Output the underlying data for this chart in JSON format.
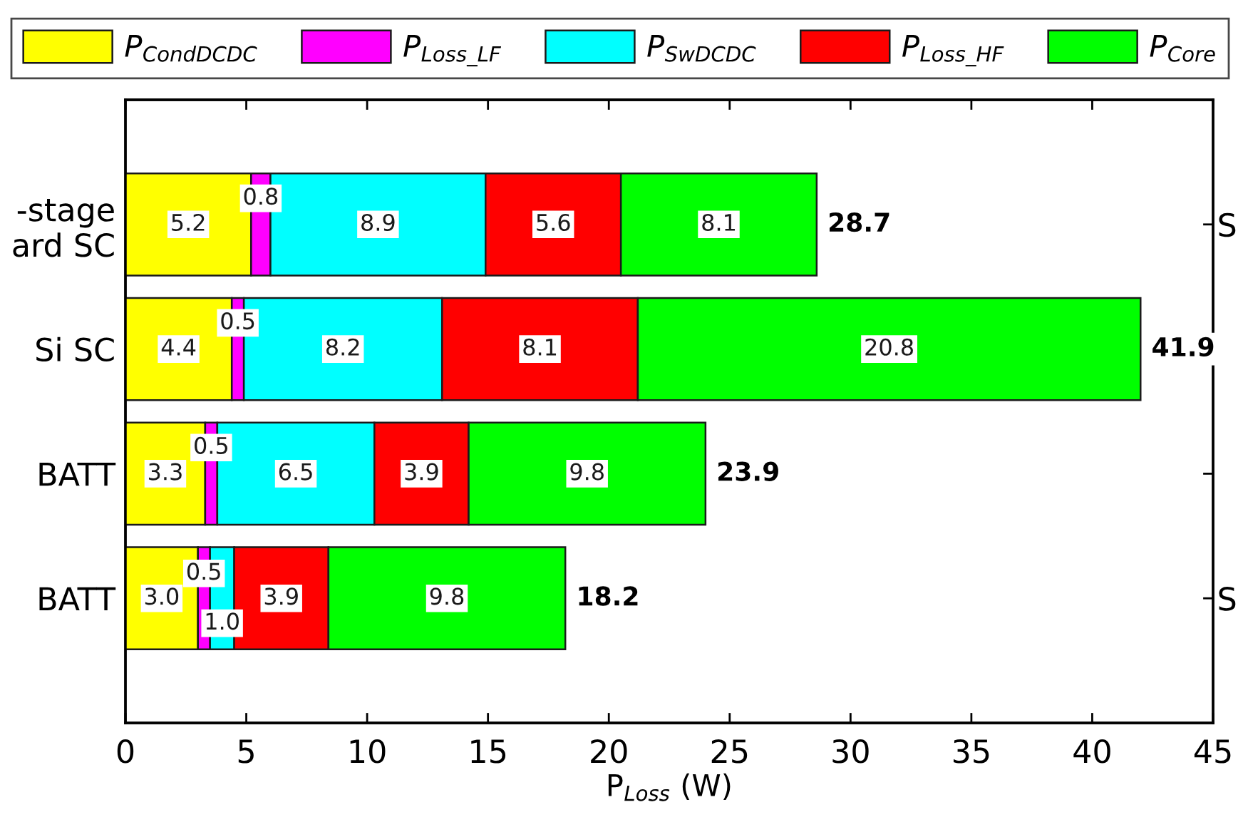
{
  "chart_data": {
    "type": "bar",
    "orientation": "horizontal",
    "stacked": true,
    "categories": [
      "-stage\nard SC",
      "Si SC",
      "BATT",
      "BATT"
    ],
    "y2_categories": [
      "S",
      null,
      null,
      "S"
    ],
    "series": [
      {
        "name": "P$_{CondDCDC}$",
        "color": "#ffff00",
        "values": [
          5.2,
          4.4,
          3.3,
          3.0
        ],
        "value_labels": [
          "5.2",
          "4.4",
          "3.3",
          "3.0"
        ]
      },
      {
        "name": "P$_{Loss_LF}$",
        "color": "#ff00ff",
        "values": [
          0.8,
          0.5,
          0.5,
          0.5
        ],
        "value_labels": [
          "0.8",
          "0.5",
          "0.5",
          "0.5"
        ]
      },
      {
        "name": "P$_{SwDCDC}$",
        "color": "#00ffff",
        "values": [
          8.9,
          8.2,
          6.5,
          1.0
        ],
        "value_labels": [
          "8.9",
          "8.2",
          "6.5",
          "1.0"
        ]
      },
      {
        "name": "P$_{Loss_HF}$",
        "color": "#ff0000",
        "values": [
          5.6,
          8.1,
          3.9,
          3.9
        ],
        "value_labels": [
          "5.6",
          "8.1",
          "3.9",
          "3.9"
        ]
      },
      {
        "name": "P$_{Core}$",
        "color": "#00ff00",
        "values": [
          8.1,
          20.8,
          9.8,
          9.8
        ],
        "value_labels": [
          "8.1",
          "20.8",
          "9.8",
          "9.8"
        ]
      }
    ],
    "xlabel": "P$_{Loss}$ (W)",
    "xlim": [
      0,
      45
    ],
    "xticks": [
      0,
      5,
      10,
      15,
      20,
      25,
      30,
      35,
      40,
      45
    ],
    "totals": [
      "28.7",
      "41.9",
      "23.9",
      "18.2"
    ],
    "legend": "top"
  }
}
